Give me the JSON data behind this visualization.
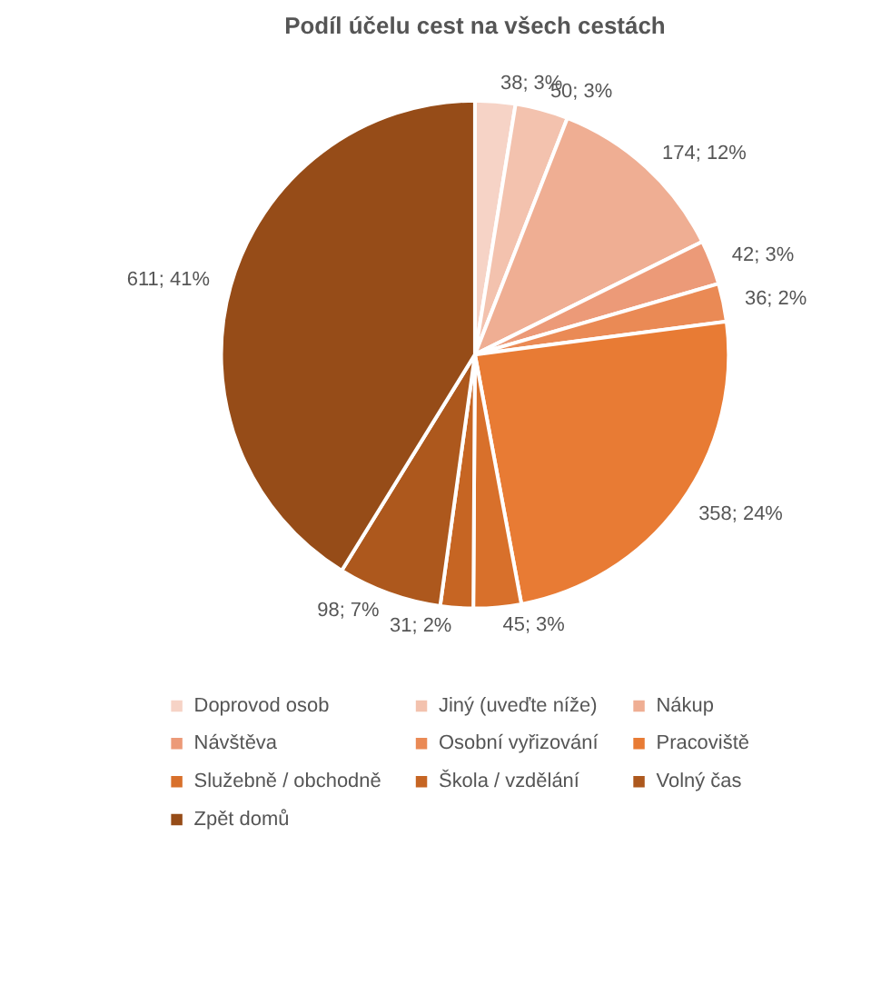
{
  "chart_data": {
    "type": "pie",
    "title": "Podíl účelu cest na všech cestách",
    "categories": [
      "Doprovod osob",
      "Jiný (uveďte níže)",
      "Nákup",
      "Návštěva",
      "Osobní vyřizování",
      "Pracoviště",
      "Služebně / obchodně",
      "Škola / vzdělání",
      "Volný čas",
      "Zpět domů"
    ],
    "values": [
      38,
      50,
      174,
      42,
      36,
      358,
      45,
      31,
      98,
      611
    ],
    "value_labels": [
      "38; 3%",
      "50; 3%",
      "174; 12%",
      "42; 3%",
      "36; 2%",
      "358; 24%",
      "45; 3%",
      "31; 2%",
      "98; 7%",
      "611; 41%"
    ],
    "colors": [
      "#f6d3c6",
      "#f3c2ae",
      "#efae93",
      "#ec9a78",
      "#ea8a55",
      "#e87b34",
      "#d8702b",
      "#c66523",
      "#ad581d",
      "#964c18"
    ],
    "legend": "bottom"
  }
}
